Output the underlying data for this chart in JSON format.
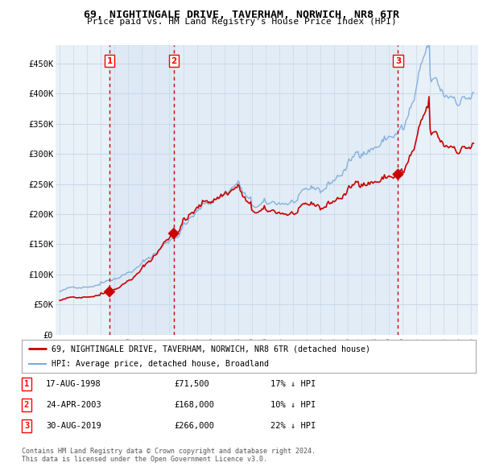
{
  "title": "69, NIGHTINGALE DRIVE, TAVERHAM, NORWICH, NR8 6TR",
  "subtitle": "Price paid vs. HM Land Registry's House Price Index (HPI)",
  "ylabel_ticks": [
    "£0",
    "£50K",
    "£100K",
    "£150K",
    "£200K",
    "£250K",
    "£300K",
    "£350K",
    "£400K",
    "£450K"
  ],
  "ytick_values": [
    0,
    50000,
    100000,
    150000,
    200000,
    250000,
    300000,
    350000,
    400000,
    450000
  ],
  "xlim_start": 1994.7,
  "xlim_end": 2025.5,
  "ylim": [
    0,
    480000
  ],
  "sale_dates": [
    1998.63,
    2003.31,
    2019.66
  ],
  "sale_prices": [
    71500,
    168000,
    266000
  ],
  "sale_labels": [
    "1",
    "2",
    "3"
  ],
  "vline_color": "#cc0000",
  "vline_style": "--",
  "price_line_color": "#cc0000",
  "hpi_line_color": "#7aabda",
  "shade_color": "#ddeeff",
  "plot_bg_color": "#e8f0f8",
  "legend_price_label": "69, NIGHTINGALE DRIVE, TAVERHAM, NORWICH, NR8 6TR (detached house)",
  "legend_hpi_label": "HPI: Average price, detached house, Broadland",
  "table_data": [
    [
      "1",
      "17-AUG-1998",
      "£71,500",
      "17% ↓ HPI"
    ],
    [
      "2",
      "24-APR-2003",
      "£168,000",
      "10% ↓ HPI"
    ],
    [
      "3",
      "30-AUG-2019",
      "£266,000",
      "22% ↓ HPI"
    ]
  ],
  "footnote": "Contains HM Land Registry data © Crown copyright and database right 2024.\nThis data is licensed under the Open Government Licence v3.0.",
  "background_color": "#ffffff",
  "grid_color": "#c8d8e8"
}
